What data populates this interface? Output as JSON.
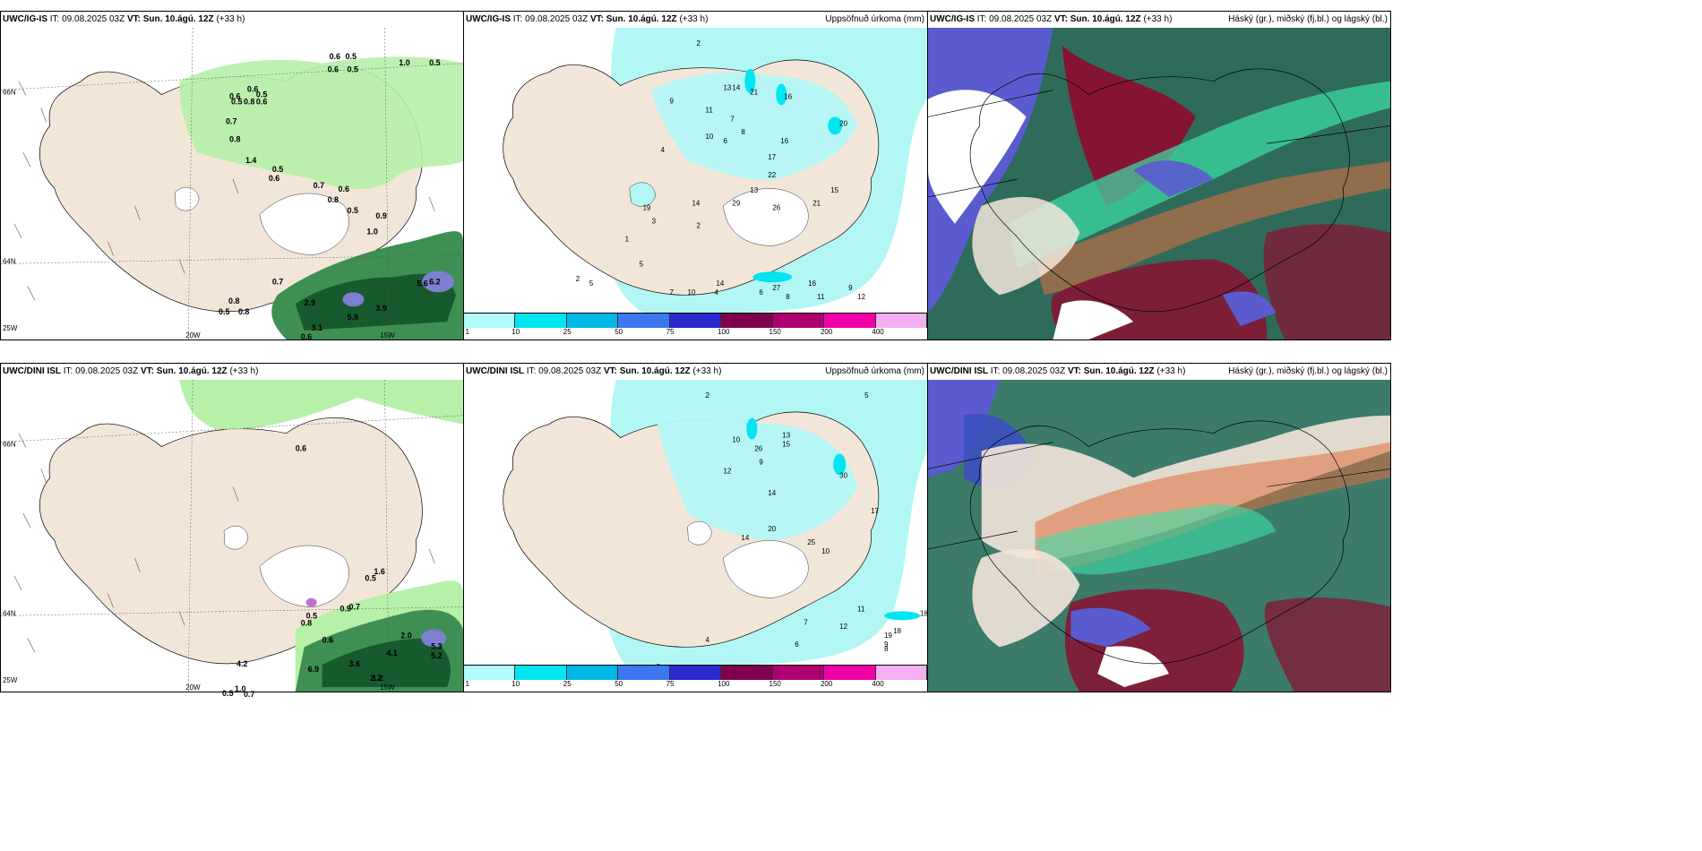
{
  "panels": [
    {
      "model": "UWC/IG-IS",
      "it_label": "IT:",
      "it": "09.08.2025 03Z",
      "vt_label": "VT:",
      "vt": "Sun. 10.ágú. 12Z",
      "lead": "(+33 h)",
      "right_title": ""
    },
    {
      "model": "UWC/IG-IS",
      "it_label": "IT:",
      "it": "09.08.2025 03Z",
      "vt_label": "VT:",
      "vt": "Sun. 10.ágú. 12Z",
      "lead": "(+33 h)",
      "right_title": "Uppsöfnuð úrkoma (mm)"
    },
    {
      "model": "UWC/IG-IS",
      "it_label": "IT:",
      "it": "09.08.2025 03Z",
      "vt_label": "VT:",
      "vt": "Sun. 10.ágú. 12Z",
      "lead": "(+33 h)",
      "right_title": "Háský (gr.), miðský (fj.bl.) og lágský (bl.)"
    },
    {
      "model": "UWC/DINI ISL",
      "it_label": "IT:",
      "it": "09.08.2025 03Z",
      "vt_label": "VT:",
      "vt": "Sun. 10.ágú. 12Z",
      "lead": "(+33 h)",
      "right_title": ""
    },
    {
      "model": "UWC/DINI ISL",
      "it_label": "IT:",
      "it": "09.08.2025 03Z",
      "vt_label": "VT:",
      "vt": "Sun. 10.ágú. 12Z",
      "lead": "(+33 h)",
      "right_title": "Uppsöfnuð úrkoma (mm)"
    },
    {
      "model": "UWC/DINI ISL",
      "it_label": "IT:",
      "it": "09.08.2025 03Z",
      "vt_label": "VT:",
      "vt": "Sun. 10.ágú. 12Z",
      "lead": "(+33 h)",
      "right_title": "Háský (gr.), miðský (fj.bl.) og lágský (bl.)"
    }
  ],
  "axes": {
    "lat_top": "66N",
    "lat_mid": "64N",
    "lon_left": "25W",
    "lon_a": "20W",
    "lon_b": "15W"
  },
  "precip_legend": {
    "ticks": [
      "1",
      "10",
      "25",
      "50",
      "75",
      "100",
      "150",
      "200",
      "400"
    ],
    "colors": [
      "#b3fbfb",
      "#00e5f0",
      "#00b8e8",
      "#3c78f0",
      "#2a2ad0",
      "#800050",
      "#b00070",
      "#f000a8",
      "#f2b0f0"
    ]
  },
  "colors": {
    "land": "#f2e6d9",
    "precip_light": "#b3f7f5",
    "wind_green": "#b6f0a9",
    "cloud_dark": "#2e6e5c"
  },
  "values": {
    "p1": [
      "0.6",
      "0.5",
      "1.0",
      "0.5",
      "0.6",
      "0.5",
      "0.6",
      "0.6",
      "0.5",
      "0.5",
      "0.8",
      "0.6",
      "0.7",
      "0.8",
      "1.4",
      "0.5",
      "0.6",
      "0.7",
      "0.8",
      "0.6",
      "0.5",
      "0.9",
      "1.0",
      "0.7",
      "0.8",
      "0.5",
      "0.8",
      "5.6",
      "6.2",
      "3.9",
      "5.8",
      "2.9",
      "3.1",
      "0.6"
    ],
    "p2": [
      "2",
      "13",
      "14",
      "21",
      "16",
      "9",
      "11",
      "7",
      "8",
      "10",
      "6",
      "4",
      "16",
      "20",
      "17",
      "22",
      "13",
      "15",
      "21",
      "29",
      "26",
      "14",
      "19",
      "3",
      "2",
      "1",
      "5",
      "7",
      "10",
      "14",
      "27",
      "16",
      "11",
      "8",
      "6",
      "4",
      "2",
      "5",
      "9",
      "12"
    ],
    "p4": [
      "0.6",
      "1.6",
      "0.5",
      "0.8",
      "0.5",
      "0.9",
      "0.7",
      "0.6",
      "2.0",
      "5.3",
      "5.2",
      "4.1",
      "3.6",
      "6.9",
      "2.7",
      "1.0",
      "0.7",
      "0.5",
      "1.2",
      "4.2"
    ],
    "p5": [
      "2",
      "5",
      "10",
      "13",
      "15",
      "26",
      "9",
      "12",
      "14",
      "30",
      "17",
      "20",
      "14",
      "18",
      "25",
      "10",
      "18",
      "19",
      "12",
      "11",
      "9",
      "8",
      "7",
      "3",
      "4",
      "6",
      "1"
    ]
  }
}
